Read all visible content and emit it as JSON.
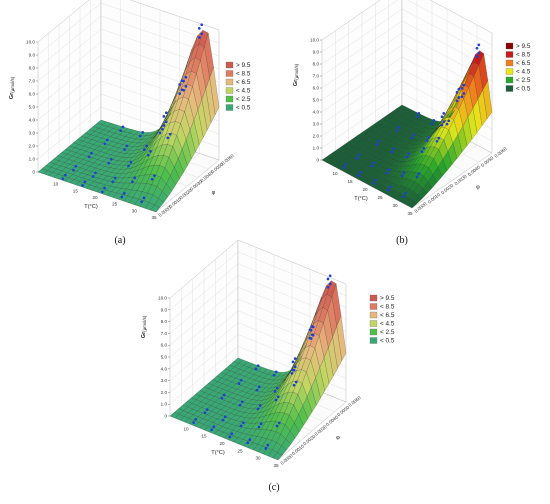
{
  "panels": [
    {
      "label": "(a)",
      "ylabel_main": "Gr",
      "ylabel_sub": "(μmol/s)",
      "temp_label": "T(°C)",
      "x_label": "φ",
      "legend": [
        "> 9.5",
        "< 8.5",
        "< 6.5",
        "< 4.5",
        "< 2.5",
        "< 0.5"
      ],
      "legend_colors": [
        "#cc5a4e",
        "#de7c62",
        "#e8b97e",
        "#c3d663",
        "#4fbf4b",
        "#3aa875"
      ]
    },
    {
      "label": "(b)",
      "ylabel_main": "Gr",
      "ylabel_sub": "(μmol/s)",
      "temp_label": "T(°C)",
      "x_label": "φ",
      "legend": [
        "> 9.5",
        "< 8.5",
        "< 6.5",
        "< 4.5",
        "< 2.5",
        "< 0.5"
      ],
      "legend_colors": [
        "#8b0000",
        "#c81d1d",
        "#ef7e1e",
        "#e8e81a",
        "#28a82c",
        "#1b5f38"
      ]
    },
    {
      "label": "(c)",
      "ylabel_main": "Gr",
      "ylabel_sub": "(μmol/s)",
      "temp_label": "T(°C)",
      "x_label": "φ",
      "legend": [
        "> 9.5",
        "< 8.5",
        "< 6.5",
        "< 4.5",
        "< 2.5",
        "< 0.5"
      ],
      "legend_colors": [
        "#cc5a4e",
        "#de7c62",
        "#e8b97e",
        "#c3d663",
        "#4fbf4b",
        "#3aa875"
      ]
    }
  ],
  "chart_data": [
    {
      "type": "surface",
      "panel": "(a)",
      "z_ticks": [
        "0",
        "1.0",
        "2.0",
        "3.0",
        "4.0",
        "5.0",
        "6.0",
        "7.0",
        "8.0",
        "9.0",
        "10.0"
      ],
      "zlim": [
        0,
        10
      ],
      "t_ticks": [
        "10",
        "15",
        "20",
        "25",
        "30",
        "35"
      ],
      "tlim": [
        5,
        35
      ],
      "phi_ticks": [
        "0.0000",
        "0.0010",
        "0.0020",
        "0.0030",
        "0.0040",
        "0.0050",
        "0.0060"
      ],
      "philim": [
        0,
        0.006
      ],
      "peak": {
        "t": 32,
        "phi": 0.006,
        "value": 9.4
      },
      "contour_levels": [
        0.5,
        2.5,
        4.5,
        6.5,
        8.5,
        9.5
      ]
    },
    {
      "type": "surface",
      "panel": "(b)",
      "z_ticks": [
        "0",
        "1.0",
        "2.0",
        "3.0",
        "4.0",
        "5.0",
        "6.0",
        "7.0",
        "8.0",
        "9.0",
        "10.0"
      ],
      "zlim": [
        0,
        10
      ],
      "t_ticks": [
        "10",
        "15",
        "20",
        "25",
        "30",
        "35"
      ],
      "tlim": [
        5,
        35
      ],
      "phi_ticks": [
        "0.0000",
        "0.0010",
        "0.0020",
        "0.0030",
        "0.0040",
        "0.0050",
        "0.0060"
      ],
      "philim": [
        0,
        0.006
      ],
      "peak": {
        "t": 32,
        "phi": 0.006,
        "value": 7.8
      },
      "contour_levels": [
        0.5,
        2.5,
        4.5,
        6.5,
        8.5,
        9.5
      ]
    },
    {
      "type": "surface",
      "panel": "(c)",
      "z_ticks": [
        "0",
        "1.0",
        "2.0",
        "3.0",
        "4.0",
        "5.0",
        "6.0",
        "7.0",
        "8.0",
        "9.0",
        "10.0"
      ],
      "zlim": [
        0,
        10
      ],
      "t_ticks": [
        "10",
        "15",
        "20",
        "25",
        "30",
        "35"
      ],
      "tlim": [
        5,
        35
      ],
      "phi_ticks": [
        "0.0000",
        "0.0010",
        "0.0020",
        "0.0030",
        "0.0040",
        "0.0050",
        "0.0060"
      ],
      "philim": [
        0,
        0.006
      ],
      "peak": {
        "t": 32,
        "phi": 0.006,
        "value": 9.6
      },
      "contour_levels": [
        0.5,
        2.5,
        4.5,
        6.5,
        8.5,
        9.5
      ]
    }
  ]
}
